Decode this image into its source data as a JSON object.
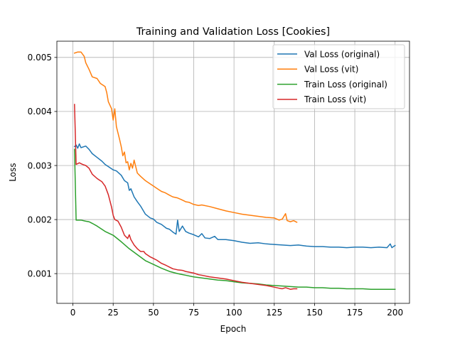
{
  "chart_data": {
    "type": "line",
    "title": "Training and Validation Loss [Cookies]",
    "xlabel": "Epoch",
    "ylabel": "Loss",
    "xlim": [
      -9.95,
      208.95
    ],
    "ylim": [
      0.00045,
      0.0053
    ],
    "xticks": [
      0,
      25,
      50,
      75,
      100,
      125,
      150,
      175,
      200
    ],
    "xtick_labels": [
      "0",
      "25",
      "50",
      "75",
      "100",
      "125",
      "150",
      "175",
      "200"
    ],
    "yticks": [
      0.001,
      0.002,
      0.003,
      0.004,
      0.005
    ],
    "ytick_labels": [
      "0.001",
      "0.002",
      "0.003",
      "0.004",
      "0.005"
    ],
    "grid": true,
    "legend_position": "upper right",
    "series": [
      {
        "name": "Val Loss (original)",
        "color": "#1f77b4",
        "points": [
          [
            1,
            0.00335
          ],
          [
            2,
            0.00338
          ],
          [
            3,
            0.00332
          ],
          [
            4,
            0.0034
          ],
          [
            5,
            0.00333
          ],
          [
            8,
            0.00336
          ],
          [
            10,
            0.0033
          ],
          [
            12,
            0.00322
          ],
          [
            15,
            0.00315
          ],
          [
            18,
            0.00308
          ],
          [
            20,
            0.00302
          ],
          [
            22,
            0.00298
          ],
          [
            25,
            0.00292
          ],
          [
            27,
            0.0029
          ],
          [
            30,
            0.00282
          ],
          [
            32,
            0.00272
          ],
          [
            34,
            0.00268
          ],
          [
            35,
            0.00254
          ],
          [
            36,
            0.00257
          ],
          [
            38,
            0.00242
          ],
          [
            40,
            0.00233
          ],
          [
            42,
            0.00225
          ],
          [
            45,
            0.0021
          ],
          [
            48,
            0.00203
          ],
          [
            50,
            0.00201
          ],
          [
            52,
            0.00195
          ],
          [
            55,
            0.00191
          ],
          [
            58,
            0.00184
          ],
          [
            60,
            0.00182
          ],
          [
            62,
            0.00177
          ],
          [
            64,
            0.00173
          ],
          [
            65,
            0.00199
          ],
          [
            66,
            0.00178
          ],
          [
            68,
            0.00188
          ],
          [
            70,
            0.00178
          ],
          [
            72,
            0.00175
          ],
          [
            75,
            0.00172
          ],
          [
            78,
            0.00168
          ],
          [
            80,
            0.00174
          ],
          [
            82,
            0.00166
          ],
          [
            85,
            0.00165
          ],
          [
            88,
            0.00169
          ],
          [
            90,
            0.00163
          ],
          [
            95,
            0.00163
          ],
          [
            100,
            0.00161
          ],
          [
            105,
            0.00158
          ],
          [
            110,
            0.00156
          ],
          [
            115,
            0.00157
          ],
          [
            120,
            0.00155
          ],
          [
            125,
            0.00154
          ],
          [
            130,
            0.00153
          ],
          [
            135,
            0.00152
          ],
          [
            140,
            0.00153
          ],
          [
            145,
            0.00151
          ],
          [
            150,
            0.0015
          ],
          [
            155,
            0.0015
          ],
          [
            160,
            0.00149
          ],
          [
            165,
            0.00149
          ],
          [
            170,
            0.00148
          ],
          [
            175,
            0.00149
          ],
          [
            180,
            0.00149
          ],
          [
            185,
            0.00148
          ],
          [
            190,
            0.00149
          ],
          [
            195,
            0.00148
          ],
          [
            197,
            0.00155
          ],
          [
            198,
            0.00148
          ],
          [
            200,
            0.00152
          ]
        ]
      },
      {
        "name": "Val Loss (vit)",
        "color": "#ff7f0e",
        "points": [
          [
            1,
            0.00508
          ],
          [
            3,
            0.0051
          ],
          [
            5,
            0.0051
          ],
          [
            7,
            0.00502
          ],
          [
            8,
            0.0049
          ],
          [
            10,
            0.00478
          ],
          [
            12,
            0.00464
          ],
          [
            15,
            0.00461
          ],
          [
            17,
            0.00452
          ],
          [
            20,
            0.00446
          ],
          [
            21,
            0.00435
          ],
          [
            22,
            0.00418
          ],
          [
            24,
            0.00405
          ],
          [
            25,
            0.00384
          ],
          [
            26,
            0.00405
          ],
          [
            27,
            0.00372
          ],
          [
            28,
            0.0036
          ],
          [
            29,
            0.00348
          ],
          [
            30,
            0.00335
          ],
          [
            31,
            0.00318
          ],
          [
            32,
            0.00325
          ],
          [
            33,
            0.00305
          ],
          [
            34,
            0.00307
          ],
          [
            35,
            0.00292
          ],
          [
            36,
            0.00304
          ],
          [
            37,
            0.00295
          ],
          [
            38,
            0.0031
          ],
          [
            40,
            0.00286
          ],
          [
            42,
            0.0028
          ],
          [
            45,
            0.00272
          ],
          [
            48,
            0.00266
          ],
          [
            50,
            0.00262
          ],
          [
            52,
            0.00258
          ],
          [
            55,
            0.00252
          ],
          [
            57,
            0.0025
          ],
          [
            60,
            0.00245
          ],
          [
            62,
            0.00242
          ],
          [
            65,
            0.0024
          ],
          [
            68,
            0.00236
          ],
          [
            70,
            0.00233
          ],
          [
            72,
            0.00232
          ],
          [
            75,
            0.00228
          ],
          [
            78,
            0.00226
          ],
          [
            80,
            0.00227
          ],
          [
            85,
            0.00224
          ],
          [
            90,
            0.0022
          ],
          [
            95,
            0.00216
          ],
          [
            100,
            0.00213
          ],
          [
            105,
            0.0021
          ],
          [
            110,
            0.00208
          ],
          [
            115,
            0.00206
          ],
          [
            120,
            0.00204
          ],
          [
            125,
            0.00203
          ],
          [
            128,
            0.00199
          ],
          [
            130,
            0.00201
          ],
          [
            132,
            0.00211
          ],
          [
            133,
            0.00198
          ],
          [
            135,
            0.00196
          ],
          [
            137,
            0.00198
          ],
          [
            139,
            0.00195
          ]
        ]
      },
      {
        "name": "Train Loss (original)",
        "color": "#2ca02c",
        "points": [
          [
            1,
            0.0033
          ],
          [
            2,
            0.00199
          ],
          [
            5,
            0.00199
          ],
          [
            8,
            0.00197
          ],
          [
            10,
            0.00196
          ],
          [
            12,
            0.00193
          ],
          [
            15,
            0.00188
          ],
          [
            18,
            0.00182
          ],
          [
            20,
            0.00178
          ],
          [
            25,
            0.00171
          ],
          [
            30,
            0.00159
          ],
          [
            35,
            0.00146
          ],
          [
            40,
            0.00135
          ],
          [
            45,
            0.00124
          ],
          [
            50,
            0.00117
          ],
          [
            55,
            0.0011
          ],
          [
            60,
            0.00104
          ],
          [
            65,
            0.001
          ],
          [
            70,
            0.00097
          ],
          [
            75,
            0.00094
          ],
          [
            80,
            0.00092
          ],
          [
            85,
            0.0009
          ],
          [
            90,
            0.00088
          ],
          [
            95,
            0.00087
          ],
          [
            100,
            0.00085
          ],
          [
            105,
            0.00083
          ],
          [
            110,
            0.00082
          ],
          [
            115,
            0.00081
          ],
          [
            120,
            0.00079
          ],
          [
            125,
            0.00078
          ],
          [
            130,
            0.00077
          ],
          [
            135,
            0.00076
          ],
          [
            140,
            0.00075
          ],
          [
            145,
            0.00075
          ],
          [
            150,
            0.00074
          ],
          [
            155,
            0.00074
          ],
          [
            160,
            0.00073
          ],
          [
            165,
            0.00073
          ],
          [
            170,
            0.00072
          ],
          [
            175,
            0.00072
          ],
          [
            180,
            0.00072
          ],
          [
            185,
            0.00071
          ],
          [
            190,
            0.00071
          ],
          [
            195,
            0.00071
          ],
          [
            200,
            0.00071
          ]
        ]
      },
      {
        "name": "Train Loss (vit)",
        "color": "#d62728",
        "points": [
          [
            1,
            0.00413
          ],
          [
            2,
            0.00302
          ],
          [
            4,
            0.00305
          ],
          [
            6,
            0.00302
          ],
          [
            8,
            0.003
          ],
          [
            10,
            0.00295
          ],
          [
            12,
            0.00284
          ],
          [
            15,
            0.00276
          ],
          [
            18,
            0.0027
          ],
          [
            20,
            0.00262
          ],
          [
            22,
            0.00246
          ],
          [
            24,
            0.00223
          ],
          [
            25,
            0.00208
          ],
          [
            26,
            0.002
          ],
          [
            28,
            0.00197
          ],
          [
            30,
            0.00186
          ],
          [
            32,
            0.00171
          ],
          [
            34,
            0.00165
          ],
          [
            35,
            0.00172
          ],
          [
            36,
            0.00163
          ],
          [
            38,
            0.00153
          ],
          [
            40,
            0.00146
          ],
          [
            42,
            0.00141
          ],
          [
            44,
            0.00141
          ],
          [
            45,
            0.00137
          ],
          [
            48,
            0.00131
          ],
          [
            50,
            0.00128
          ],
          [
            52,
            0.00125
          ],
          [
            55,
            0.00119
          ],
          [
            58,
            0.00115
          ],
          [
            60,
            0.00112
          ],
          [
            62,
            0.00109
          ],
          [
            65,
            0.00107
          ],
          [
            68,
            0.00106
          ],
          [
            70,
            0.00104
          ],
          [
            75,
            0.00101
          ],
          [
            78,
            0.00098
          ],
          [
            80,
            0.00097
          ],
          [
            85,
            0.00094
          ],
          [
            90,
            0.00092
          ],
          [
            95,
            0.0009
          ],
          [
            100,
            0.00087
          ],
          [
            105,
            0.00084
          ],
          [
            110,
            0.00082
          ],
          [
            115,
            0.0008
          ],
          [
            120,
            0.00078
          ],
          [
            125,
            0.00075
          ],
          [
            128,
            0.00073
          ],
          [
            130,
            0.00072
          ],
          [
            132,
            0.00074
          ],
          [
            135,
            0.00071
          ],
          [
            137,
            0.00072
          ],
          [
            139,
            0.00072
          ]
        ]
      }
    ]
  }
}
